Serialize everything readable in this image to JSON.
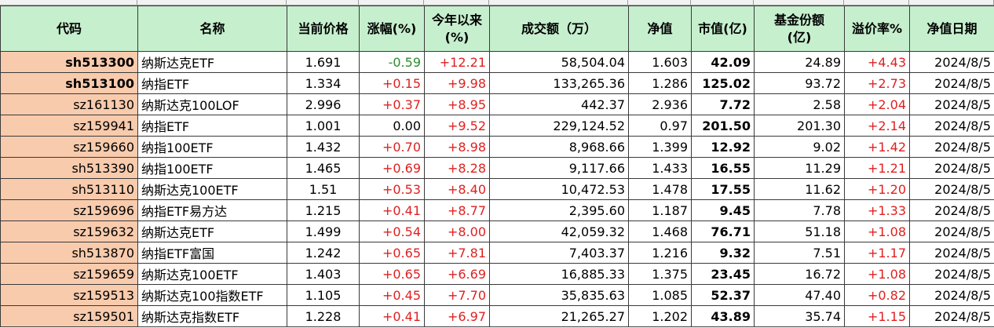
{
  "headers": [
    "代码",
    "名称",
    "当前价格",
    "涨幅(%)",
    "今年以来\n(%)",
    "成交额（万）",
    "净值",
    "市值(亿)",
    "基金份额\n(亿)",
    "溢价率%",
    "净值日期"
  ],
  "colors": {
    "header_bg": "#c6efce",
    "code_bg": "#f8cbad",
    "up": "#e02020",
    "down": "#2e8b2e"
  },
  "rows": [
    [
      "sh513300",
      "纳斯达克ETF",
      "1.691",
      "-0.59",
      "+12.21",
      "58,504.04",
      "1.603",
      "42.09",
      "24.89",
      "+4.43",
      "2024/8/5"
    ],
    [
      "sh513100",
      "纳指ETF",
      "1.334",
      "+0.15",
      "+9.98",
      "133,265.36",
      "1.286",
      "125.02",
      "93.72",
      "+2.73",
      "2024/8/5"
    ],
    [
      "sz161130",
      "纳斯达克100LOF",
      "2.996",
      "+0.37",
      "+8.95",
      "442.37",
      "2.936",
      "7.72",
      "2.58",
      "+2.04",
      "2024/8/5"
    ],
    [
      "sz159941",
      "纳指ETF",
      "1.001",
      "0.00",
      "+9.52",
      "229,124.52",
      "0.97",
      "201.50",
      "201.30",
      "+2.14",
      "2024/8/5"
    ],
    [
      "sz159660",
      "纳指100ETF",
      "1.432",
      "+0.70",
      "+8.98",
      "8,968.66",
      "1.399",
      "12.92",
      "9.02",
      "+1.42",
      "2024/8/5"
    ],
    [
      "sh513390",
      "纳指100ETF",
      "1.465",
      "+0.69",
      "+8.28",
      "9,117.66",
      "1.433",
      "16.55",
      "11.29",
      "+1.21",
      "2024/8/5"
    ],
    [
      "sh513110",
      "纳斯达克100ETF",
      "1.51",
      "+0.53",
      "+8.40",
      "10,472.53",
      "1.478",
      "17.55",
      "11.62",
      "+1.20",
      "2024/8/5"
    ],
    [
      "sz159696",
      "纳指ETF易方达",
      "1.215",
      "+0.41",
      "+8.77",
      "2,395.60",
      "1.187",
      "9.45",
      "7.78",
      "+1.33",
      "2024/8/5"
    ],
    [
      "sz159632",
      "纳斯达克ETF",
      "1.499",
      "+0.54",
      "+8.00",
      "42,059.32",
      "1.468",
      "76.71",
      "51.18",
      "+1.08",
      "2024/8/5"
    ],
    [
      "sh513870",
      "纳指ETF富国",
      "1.242",
      "+0.65",
      "+7.81",
      "7,403.37",
      "1.216",
      "9.32",
      "7.51",
      "+1.17",
      "2024/8/5"
    ],
    [
      "sz159659",
      "纳斯达克100ETF",
      "1.403",
      "+0.65",
      "+6.69",
      "16,885.33",
      "1.375",
      "23.45",
      "16.72",
      "+1.08",
      "2024/8/5"
    ],
    [
      "sz159513",
      "纳斯达克100指数ETF",
      "1.105",
      "+0.45",
      "+7.70",
      "35,835.63",
      "1.085",
      "52.37",
      "47.40",
      "+0.82",
      "2024/8/5"
    ],
    [
      "sz159501",
      "纳斯达克指数ETF",
      "1.228",
      "+0.41",
      "+6.97",
      "21,265.27",
      "1.202",
      "43.89",
      "35.74",
      "+1.15",
      "2024/8/5"
    ]
  ]
}
